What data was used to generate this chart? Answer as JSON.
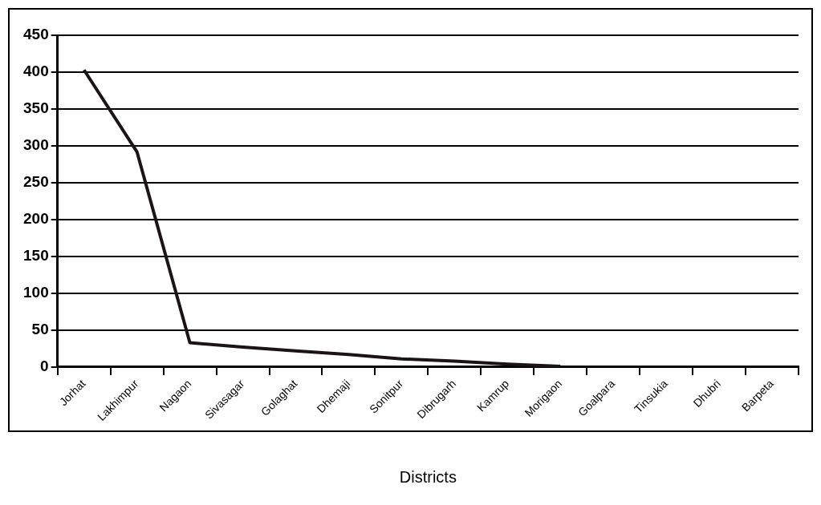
{
  "chart_data": {
    "type": "line",
    "xlabel": "Districts",
    "categories": [
      "Jorhat",
      "Lakhimpur",
      "Nagaon",
      "Sivasagar",
      "Golaghat",
      "Dhemaji",
      "Sonitpur",
      "Dibrugarh",
      "Kamrup",
      "Morigaon",
      "Goalpara",
      "Tinsukia",
      "Dhubri",
      "Barpeta"
    ],
    "series": [
      {
        "color": "#1a1414",
        "values": [
          403,
          292,
          33,
          27,
          22,
          17,
          11,
          8,
          4,
          1,
          null,
          null,
          null,
          null
        ]
      }
    ],
    "ylim": [
      0,
      450
    ],
    "yticks": [
      0,
      50,
      100,
      150,
      200,
      250,
      300,
      350,
      400,
      450
    ],
    "grid": "y",
    "legend": false,
    "marker": "none",
    "line_style": "solid"
  }
}
